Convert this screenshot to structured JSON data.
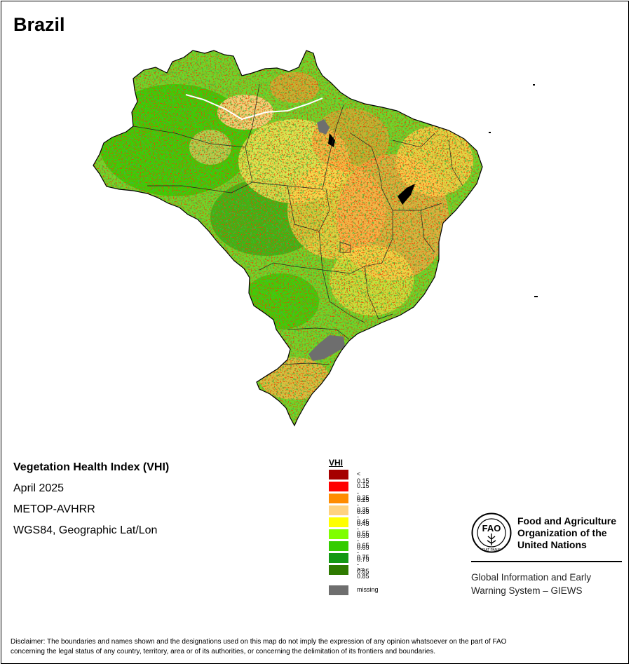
{
  "title": "Brazil",
  "info": {
    "index_name": "Vegetation Health Index (VHI)",
    "period": "April 2025",
    "sensor": "METOP-AVHRR",
    "projection": "WGS84, Geographic Lat/Lon"
  },
  "legend": {
    "title": "VHI",
    "classes": [
      {
        "label": "< 0.15",
        "color": "#a50000"
      },
      {
        "label": "0.15 - 0.25",
        "color": "#ff0000"
      },
      {
        "label": "0.25 - 0.35",
        "color": "#ff8c00"
      },
      {
        "label": "0.35 - 0.45",
        "color": "#ffd27f"
      },
      {
        "label": "0.45 - 0.55",
        "color": "#ffff00"
      },
      {
        "label": "0.55 - 0.65",
        "color": "#7fff00"
      },
      {
        "label": "0.65 - 0.75",
        "color": "#33cc00"
      },
      {
        "label": "0.75 - 0.85",
        "color": "#149914"
      },
      {
        "label": ">= 0.85",
        "color": "#2e7a00"
      }
    ],
    "missing": {
      "label": "missing",
      "color": "#6e6e6e"
    }
  },
  "logo": {
    "org_line1": "Food and Agriculture",
    "org_line2": "Organization of the",
    "org_line3": "United Nations",
    "emblem_text": "FAO",
    "motto": "FIAT PANIS"
  },
  "giews": {
    "line1": "Global Information and Early",
    "line2": "Warning System – GIEWS"
  },
  "disclaimer": {
    "line1": "Disclaimer: The boundaries and names shown and the designations used on this map do not imply the expression of any opinion whatsoever on the part of FAO",
    "line2": "concerning the legal status of any country, territory, area or of its authorities, or concerning the delimitation of its frontiers and boundaries."
  }
}
